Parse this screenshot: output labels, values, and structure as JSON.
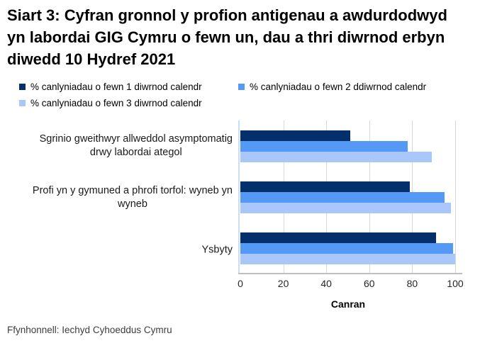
{
  "title": "Siart 3: Cyfran gronnol y profion antigenau a awdurdodwyd yn labordai GIG Cymru o fewn un, dau a thri diwrnod erbyn diwedd 10 Hydref 2021",
  "source": "Ffynhonnell: Iechyd Cyhoeddus Cymru",
  "colors": {
    "series_1_day": "#03306B",
    "series_2_days": "#5599F7",
    "series_3_days": "#A9C7FA",
    "gridline": "#D9D9D9",
    "y_axis_line": "#C9DEF0",
    "x_axis_line": "#BFBFBF",
    "background": "#FFFFFF"
  },
  "legend": {
    "items": [
      {
        "label": "% canlyniadau o fewn 1 diwrnod calendr",
        "color": "#03306B"
      },
      {
        "label": "% canlyniadau o fewn 2 ddiwrnod calendr",
        "color": "#5599F7"
      },
      {
        "label": "% canlyniadau o fewn 3 diwrnod calendr",
        "color": "#A9C7FA"
      }
    ]
  },
  "chart_data": {
    "type": "bar",
    "orientation": "horizontal",
    "title": "Siart 3: Cyfran gronnol y profion antigenau a awdurdodwyd yn labordai GIG Cymru o fewn un, dau a thri diwrnod erbyn diwedd 10 Hydref 2021",
    "categories": [
      "Sgrinio gweithwyr allweddol asymptomatig drwy labordai ategol",
      "Profi yn y gymuned a phrofi torfol: wyneb yn wyneb",
      "Ysbyty"
    ],
    "category_lines": [
      [
        "Sgrinio gweithwyr allweddol asymptomatig",
        "drwy labordai ategol"
      ],
      [
        "Profi yn y gymuned a phrofi torfol: wyneb yn",
        "wyneb"
      ],
      [
        "Ysbyty"
      ]
    ],
    "series": [
      {
        "name": "% canlyniadau o fewn 1 diwrnod calendr",
        "color": "#03306B",
        "values": [
          51,
          79,
          91
        ]
      },
      {
        "name": "% canlyniadau o fewn 2 ddiwrnod calendr",
        "color": "#5599F7",
        "values": [
          78,
          95,
          99
        ]
      },
      {
        "name": "% canlyniadau o fewn 3 diwrnod calendr",
        "color": "#A9C7FA",
        "values": [
          89,
          98,
          100
        ]
      }
    ],
    "xlabel": "Canran",
    "ylabel": "",
    "xlim": [
      0,
      100
    ],
    "xticks": [
      0,
      20,
      40,
      60,
      80,
      100
    ],
    "grid": true,
    "legend_position": "top"
  }
}
